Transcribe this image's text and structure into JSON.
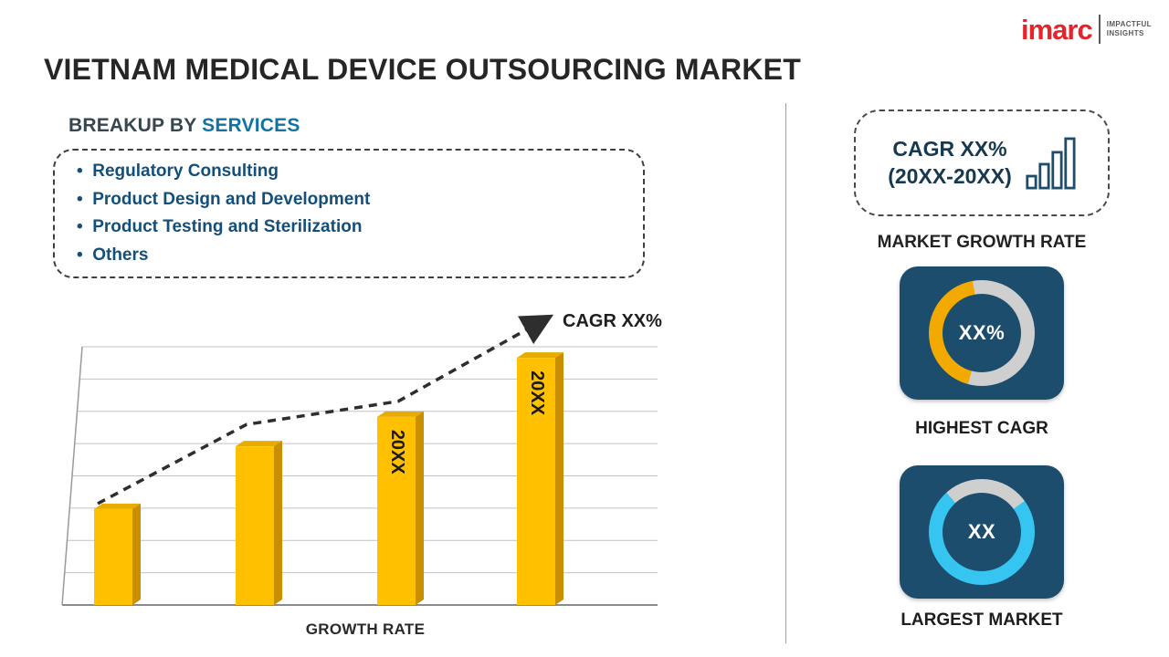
{
  "colors": {
    "bar": "#FFC000",
    "bar_side": "#C98F00",
    "bar_top": "#E8AC00",
    "navy_card": "#1D4D6D",
    "donut_orange": "#F2A900",
    "donut_gray": "#CFCFCF",
    "donut_cyan": "#35C5F0",
    "logo_red": "#E3262B",
    "heading_blue": "#1273A2",
    "list_blue": "#134F78",
    "trend_line": "#2E2E2E"
  },
  "logo": {
    "brand": "imarc",
    "tagline_line1": "IMPACTFUL",
    "tagline_line2": "INSIGHTS"
  },
  "title": "VIETNAM MEDICAL DEVICE OUTSOURCING MARKET",
  "breakup": {
    "heading_prefix": "BREAKUP BY ",
    "heading_highlight": "SERVICES",
    "items": [
      "Regulatory Consulting",
      "Product Design and Development",
      "Product Testing and Sterilization",
      "Others"
    ]
  },
  "right_panel": {
    "cagr_line1": "CAGR XX%",
    "cagr_line2": "(20XX-20XX)",
    "market_growth_label": "MARKET GROWTH RATE",
    "highest_cagr_value": "XX%",
    "highest_cagr_label": "HIGHEST CAGR",
    "largest_market_value": "XX",
    "largest_market_label": "LARGEST MARKET"
  },
  "icons": {
    "bar_chart_icon": "ascending-outlined-bars",
    "trend_arrow_icon": "dashed-arrow-up-right"
  },
  "chart_data": {
    "type": "bar",
    "categories": [
      "",
      "",
      "20XX",
      "20XX"
    ],
    "values": [
      26,
      43,
      51,
      67
    ],
    "ylim": [
      0,
      70
    ],
    "title": "",
    "xlabel": "GROWTH RATE",
    "ylabel": "",
    "grid": true,
    "legend": false,
    "bar_color": "#FFC000",
    "trend_annotation": "CAGR XX%",
    "trend_style": "dashed-arrow-increasing"
  }
}
